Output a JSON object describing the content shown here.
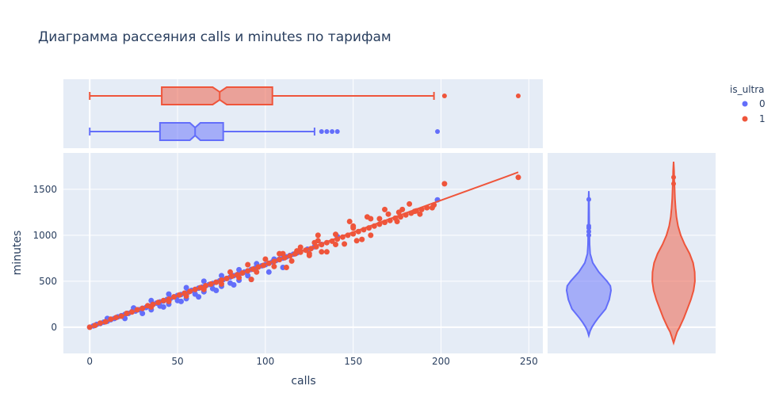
{
  "chart_data": {
    "type": "scatter",
    "title": "Диаграмма рассеяния calls и minutes по тарифам",
    "xlabel": "calls",
    "ylabel": "minutes",
    "xlim": [
      -15,
      258
    ],
    "ylim": [
      -285,
      1895
    ],
    "x_ticks": [
      0,
      50,
      100,
      150,
      200,
      250
    ],
    "x_tick_labels": [
      "0",
      "50",
      "100",
      "150",
      "200",
      "250"
    ],
    "y_ticks": [
      0,
      500,
      1000,
      1500
    ],
    "y_tick_labels": [
      "0",
      "500",
      "1000",
      "1500"
    ],
    "grid": true,
    "legend": {
      "title": "is_ultra",
      "placement": "top-right",
      "entries": [
        {
          "label": "0",
          "color": "#636efa"
        },
        {
          "label": "1",
          "color": "#ef553b"
        }
      ]
    },
    "series": [
      {
        "name": "0",
        "color": "#636efa",
        "boxplot": {
          "min": 0,
          "q1": 40,
          "median": 60,
          "q3": 76,
          "notch_low": 57,
          "notch_high": 63,
          "upper_fence": 128,
          "outliers": [
            132,
            135,
            138,
            141,
            198
          ]
        },
        "violin": {
          "points": [
            [
              -90,
              0
            ],
            [
              -40,
              0.06
            ],
            [
              0,
              0.14
            ],
            [
              50,
              0.27
            ],
            [
              100,
              0.42
            ],
            [
              200,
              0.76
            ],
            [
              300,
              0.92
            ],
            [
              400,
              1.0
            ],
            [
              450,
              0.97
            ],
            [
              500,
              0.82
            ],
            [
              600,
              0.45
            ],
            [
              700,
              0.18
            ],
            [
              800,
              0.06
            ],
            [
              900,
              0.035
            ],
            [
              1000,
              0.03
            ],
            [
              1100,
              0.022
            ],
            [
              1200,
              0.017
            ],
            [
              1300,
              0.014
            ],
            [
              1400,
              0.012
            ],
            [
              1480,
              0
            ]
          ],
          "outliers": [
            1000,
            1040,
            1080,
            1100,
            1390
          ]
        },
        "points": [
          [
            0,
            0
          ],
          [
            2,
            14
          ],
          [
            4,
            30
          ],
          [
            6,
            40
          ],
          [
            8,
            55
          ],
          [
            10,
            65
          ],
          [
            12,
            82
          ],
          [
            14,
            95
          ],
          [
            16,
            112
          ],
          [
            18,
            125
          ],
          [
            20,
            140
          ],
          [
            22,
            150
          ],
          [
            24,
            168
          ],
          [
            26,
            176
          ],
          [
            28,
            190
          ],
          [
            30,
            205
          ],
          [
            32,
            215
          ],
          [
            34,
            228
          ],
          [
            36,
            248
          ],
          [
            38,
            262
          ],
          [
            40,
            275
          ],
          [
            42,
            285
          ],
          [
            44,
            302
          ],
          [
            46,
            314
          ],
          [
            48,
            330
          ],
          [
            50,
            345
          ],
          [
            52,
            355
          ],
          [
            54,
            370
          ],
          [
            56,
            382
          ],
          [
            58,
            400
          ],
          [
            60,
            410
          ],
          [
            62,
            425
          ],
          [
            64,
            436
          ],
          [
            66,
            450
          ],
          [
            68,
            465
          ],
          [
            70,
            475
          ],
          [
            72,
            490
          ],
          [
            74,
            505
          ],
          [
            76,
            518
          ],
          [
            78,
            530
          ],
          [
            80,
            545
          ],
          [
            82,
            560
          ],
          [
            84,
            572
          ],
          [
            86,
            588
          ],
          [
            88,
            600
          ],
          [
            90,
            612
          ],
          [
            92,
            628
          ],
          [
            94,
            640
          ],
          [
            96,
            655
          ],
          [
            98,
            668
          ],
          [
            100,
            680
          ],
          [
            102,
            695
          ],
          [
            104,
            710
          ],
          [
            106,
            725
          ],
          [
            108,
            740
          ],
          [
            110,
            752
          ],
          [
            112,
            765
          ],
          [
            114,
            780
          ],
          [
            116,
            795
          ],
          [
            118,
            808
          ],
          [
            120,
            822
          ],
          [
            124,
            848
          ],
          [
            128,
            875
          ],
          [
            132,
            900
          ],
          [
            141,
            985
          ],
          [
            198,
            1385
          ],
          [
            10,
            95
          ],
          [
            20,
            95
          ],
          [
            30,
            150
          ],
          [
            35,
            190
          ],
          [
            40,
            230
          ],
          [
            45,
            250
          ],
          [
            50,
            290
          ],
          [
            55,
            310
          ],
          [
            60,
            360
          ],
          [
            65,
            385
          ],
          [
            70,
            420
          ],
          [
            75,
            445
          ],
          [
            80,
            480
          ],
          [
            85,
            510
          ],
          [
            90,
            560
          ],
          [
            25,
            210
          ],
          [
            35,
            290
          ],
          [
            45,
            360
          ],
          [
            55,
            430
          ],
          [
            65,
            500
          ],
          [
            75,
            560
          ],
          [
            85,
            625
          ],
          [
            95,
            690
          ],
          [
            105,
            740
          ],
          [
            42,
            220
          ],
          [
            52,
            280
          ],
          [
            62,
            330
          ],
          [
            72,
            400
          ],
          [
            82,
            460
          ],
          [
            92,
            520
          ],
          [
            102,
            600
          ],
          [
            110,
            650
          ]
        ]
      },
      {
        "name": "1",
        "color": "#ef553b",
        "boxplot": {
          "min": 0,
          "q1": 41,
          "median": 74,
          "q3": 104,
          "notch_low": 70,
          "notch_high": 78,
          "upper_fence": 196,
          "outliers": [
            202,
            244
          ]
        },
        "violin": {
          "points": [
            [
              -170,
              0
            ],
            [
              -140,
              0.04
            ],
            [
              -100,
              0.09
            ],
            [
              -50,
              0.16
            ],
            [
              0,
              0.27
            ],
            [
              100,
              0.46
            ],
            [
              200,
              0.62
            ],
            [
              300,
              0.78
            ],
            [
              400,
              0.9
            ],
            [
              500,
              0.96
            ],
            [
              600,
              0.95
            ],
            [
              700,
              0.88
            ],
            [
              800,
              0.72
            ],
            [
              900,
              0.5
            ],
            [
              1000,
              0.32
            ],
            [
              1100,
              0.2
            ],
            [
              1200,
              0.13
            ],
            [
              1300,
              0.09
            ],
            [
              1400,
              0.06
            ],
            [
              1500,
              0.045
            ],
            [
              1600,
              0.03
            ],
            [
              1700,
              0.02
            ],
            [
              1800,
              0
            ]
          ],
          "outliers": [
            1560,
            1630
          ]
        },
        "points": [
          [
            0,
            0
          ],
          [
            3,
            20
          ],
          [
            6,
            45
          ],
          [
            9,
            60
          ],
          [
            12,
            88
          ],
          [
            15,
            105
          ],
          [
            18,
            120
          ],
          [
            21,
            150
          ],
          [
            24,
            165
          ],
          [
            27,
            190
          ],
          [
            30,
            205
          ],
          [
            33,
            235
          ],
          [
            36,
            248
          ],
          [
            39,
            270
          ],
          [
            42,
            290
          ],
          [
            45,
            305
          ],
          [
            48,
            330
          ],
          [
            51,
            350
          ],
          [
            54,
            370
          ],
          [
            57,
            390
          ],
          [
            60,
            410
          ],
          [
            63,
            430
          ],
          [
            66,
            452
          ],
          [
            69,
            470
          ],
          [
            72,
            490
          ],
          [
            75,
            512
          ],
          [
            78,
            530
          ],
          [
            81,
            555
          ],
          [
            84,
            570
          ],
          [
            87,
            590
          ],
          [
            90,
            612
          ],
          [
            93,
            632
          ],
          [
            96,
            655
          ],
          [
            99,
            672
          ],
          [
            102,
            695
          ],
          [
            105,
            715
          ],
          [
            108,
            735
          ],
          [
            111,
            755
          ],
          [
            114,
            775
          ],
          [
            117,
            798
          ],
          [
            120,
            815
          ],
          [
            123,
            838
          ],
          [
            126,
            855
          ],
          [
            129,
            875
          ],
          [
            132,
            898
          ],
          [
            135,
            920
          ],
          [
            138,
            935
          ],
          [
            141,
            958
          ],
          [
            144,
            980
          ],
          [
            147,
            1000
          ],
          [
            150,
            1015
          ],
          [
            153,
            1040
          ],
          [
            156,
            1060
          ],
          [
            159,
            1080
          ],
          [
            162,
            1100
          ],
          [
            165,
            1120
          ],
          [
            168,
            1140
          ],
          [
            171,
            1160
          ],
          [
            174,
            1185
          ],
          [
            177,
            1200
          ],
          [
            180,
            1220
          ],
          [
            183,
            1240
          ],
          [
            186,
            1265
          ],
          [
            189,
            1280
          ],
          [
            192,
            1300
          ],
          [
            196,
            1330
          ],
          [
            202,
            1560
          ],
          [
            244,
            1630
          ],
          [
            130,
            1000
          ],
          [
            140,
            900
          ],
          [
            150,
            1100
          ],
          [
            160,
            1000
          ],
          [
            170,
            1230
          ],
          [
            155,
            955
          ],
          [
            165,
            1180
          ],
          [
            175,
            1150
          ],
          [
            145,
            905
          ],
          [
            135,
            820
          ],
          [
            125,
            800
          ],
          [
            115,
            720
          ],
          [
            105,
            660
          ],
          [
            95,
            600
          ],
          [
            85,
            540
          ],
          [
            75,
            470
          ],
          [
            65,
            410
          ],
          [
            55,
            340
          ],
          [
            45,
            280
          ],
          [
            35,
            220
          ],
          [
            80,
            600
          ],
          [
            90,
            680
          ],
          [
            100,
            740
          ],
          [
            110,
            800
          ],
          [
            120,
            870
          ],
          [
            130,
            940
          ],
          [
            140,
            1010
          ],
          [
            150,
            1080
          ],
          [
            125,
            780
          ],
          [
            160,
            1180
          ],
          [
            178,
            1280
          ],
          [
            185,
            1260
          ],
          [
            182,
            1340
          ],
          [
            168,
            1280
          ],
          [
            176,
            1250
          ],
          [
            188,
            1230
          ],
          [
            195,
            1300
          ],
          [
            92,
            520
          ],
          [
            112,
            650
          ],
          [
            132,
            820
          ],
          [
            152,
            940
          ],
          [
            108,
            800
          ],
          [
            118,
            830
          ],
          [
            128,
            920
          ],
          [
            158,
            1200
          ],
          [
            148,
            1150
          ]
        ],
        "trendline": [
          [
            0,
            -5
          ],
          [
            244,
            1685
          ]
        ]
      }
    ]
  }
}
